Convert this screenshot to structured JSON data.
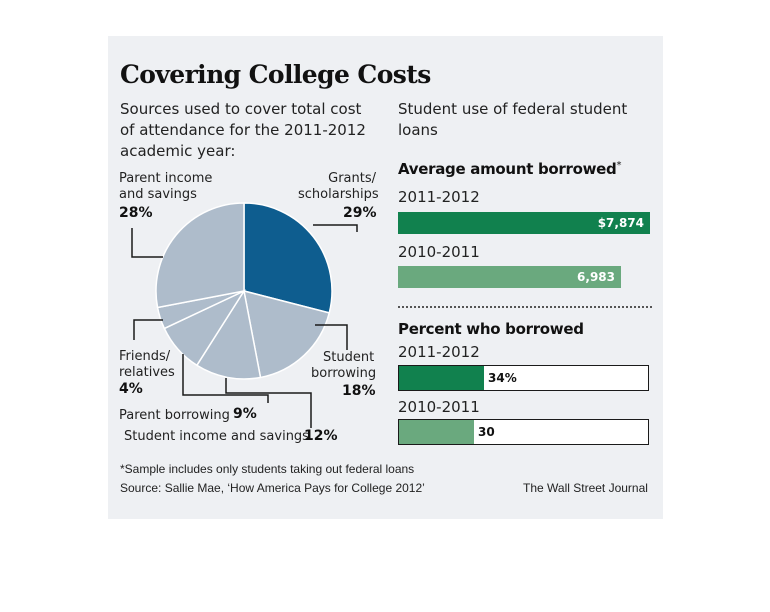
{
  "title": "Covering College Costs",
  "pie_subtitle": "Sources used to cover total cost of attendance for the 2011-2012 academic year:",
  "right_subtitle": "Student use of federal student loans",
  "labels": {
    "grants": {
      "text1": "Grants/",
      "text2": "scholarships",
      "pct": "29%"
    },
    "student_borrowing": {
      "text1": "Student",
      "text2": "borrowing",
      "pct": "18%"
    },
    "student_income": {
      "text": "Student income and savings",
      "pct": "12%"
    },
    "parent_borrowing": {
      "text": "Parent borrowing",
      "pct": "9%"
    },
    "friends": {
      "text1": "Friends/",
      "text2": "relatives",
      "pct": "4%"
    },
    "parent_income": {
      "text1": "Parent income",
      "text2": "and savings",
      "pct": "28%"
    }
  },
  "avg_heading": "Average amount borrowed",
  "avg_heading_mark": "*",
  "pct_heading": "Percent who borrowed",
  "footnote": "*Sample includes only students taking out federal loans",
  "source": "Source: Sallie Mae, ‘How America Pays for College 2012’",
  "credit": "The Wall Street Journal",
  "colors": {
    "pie_highlight": "#0e5d8f",
    "pie_slice": "#aebccb",
    "bar_dark": "#11814e",
    "bar_light": "#6aa97e",
    "panel": "#eef0f3"
  },
  "chart_data": [
    {
      "type": "pie",
      "title": "Sources used to cover total cost of attendance for the 2011-2012 academic year:",
      "categories": [
        "Grants/scholarships",
        "Student borrowing",
        "Student income and savings",
        "Parent borrowing",
        "Friends/relatives",
        "Parent income and savings"
      ],
      "values": [
        29,
        18,
        12,
        9,
        4,
        28
      ],
      "value_labels": [
        "29%",
        "18%",
        "12%",
        "9%",
        "4%",
        "28%"
      ]
    },
    {
      "type": "bar",
      "title": "Average amount borrowed",
      "categories": [
        "2011-2012",
        "2010-2011"
      ],
      "values": [
        7874,
        6983
      ],
      "value_labels": [
        "$7,874",
        "6,983"
      ],
      "xlim": [
        0,
        7874
      ]
    },
    {
      "type": "bar",
      "title": "Percent who borrowed",
      "categories": [
        "2011-2012",
        "2010-2011"
      ],
      "values": [
        34,
        30
      ],
      "value_labels": [
        "34%",
        "30"
      ],
      "xlim": [
        0,
        100
      ]
    }
  ]
}
